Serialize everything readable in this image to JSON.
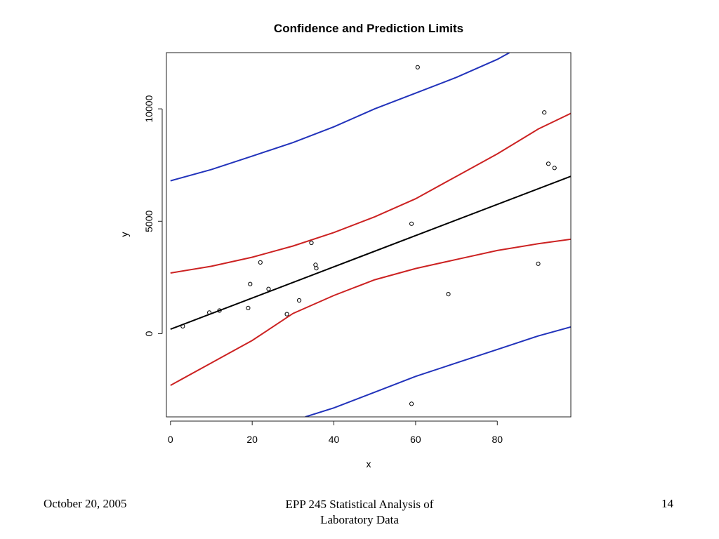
{
  "chart_data": {
    "type": "scatter",
    "title": "Confidence and Prediction Limits",
    "xlabel": "x",
    "ylabel": "y",
    "xlim": [
      -1,
      98
    ],
    "ylim": [
      -3700,
      12500
    ],
    "x_ticks": [
      0,
      20,
      40,
      60,
      80
    ],
    "y_ticks": [
      0,
      5000,
      10000
    ],
    "grid": false,
    "legend": "none",
    "points": [
      {
        "x": 3,
        "y": 330
      },
      {
        "x": 9.5,
        "y": 940
      },
      {
        "x": 12,
        "y": 1030
      },
      {
        "x": 19,
        "y": 1140
      },
      {
        "x": 19.5,
        "y": 2210
      },
      {
        "x": 22,
        "y": 3170
      },
      {
        "x": 24,
        "y": 1990
      },
      {
        "x": 28.5,
        "y": 870
      },
      {
        "x": 31.5,
        "y": 1480
      },
      {
        "x": 34.5,
        "y": 4040
      },
      {
        "x": 35.5,
        "y": 3060
      },
      {
        "x": 35.7,
        "y": 2910
      },
      {
        "x": 59,
        "y": 4890
      },
      {
        "x": 59,
        "y": -3120
      },
      {
        "x": 60.5,
        "y": 11850
      },
      {
        "x": 68,
        "y": 1760
      },
      {
        "x": 90,
        "y": 3110
      },
      {
        "x": 91.5,
        "y": 9840
      },
      {
        "x": 92.5,
        "y": 7560
      },
      {
        "x": 94,
        "y": 7370
      }
    ],
    "fit_line": {
      "x": [
        0,
        98
      ],
      "y": [
        200,
        7000
      ],
      "color": "#000000"
    },
    "confidence_upper": {
      "x": [
        0,
        10,
        20,
        30,
        40,
        50,
        60,
        70,
        80,
        90,
        98
      ],
      "y": [
        2700,
        3000,
        3400,
        3900,
        4500,
        5200,
        6000,
        7000,
        8000,
        9100,
        9800
      ],
      "color": "#cc2222"
    },
    "confidence_lower": {
      "x": [
        0,
        10,
        20,
        30,
        40,
        50,
        60,
        70,
        80,
        90,
        98
      ],
      "y": [
        -2300,
        -1300,
        -300,
        900,
        1700,
        2400,
        2900,
        3300,
        3700,
        4000,
        4200
      ],
      "color": "#cc2222"
    },
    "prediction_upper": {
      "x": [
        0,
        10,
        20,
        30,
        40,
        50,
        60,
        70,
        80,
        83
      ],
      "y": [
        6800,
        7300,
        7900,
        8500,
        9200,
        10000,
        10700,
        11400,
        12200,
        12500
      ],
      "color": "#2233bb"
    },
    "prediction_lower": {
      "x": [
        33,
        40,
        50,
        60,
        70,
        80,
        90,
        98
      ],
      "y": [
        -3700,
        -3300,
        -2600,
        -1900,
        -1300,
        -700,
        -100,
        300
      ],
      "color": "#2233bb"
    }
  },
  "footer": {
    "date": "October 20, 2005",
    "course_line1": "EPP 245 Statistical Analysis of",
    "course_line2": "Laboratory Data",
    "page": "14"
  }
}
